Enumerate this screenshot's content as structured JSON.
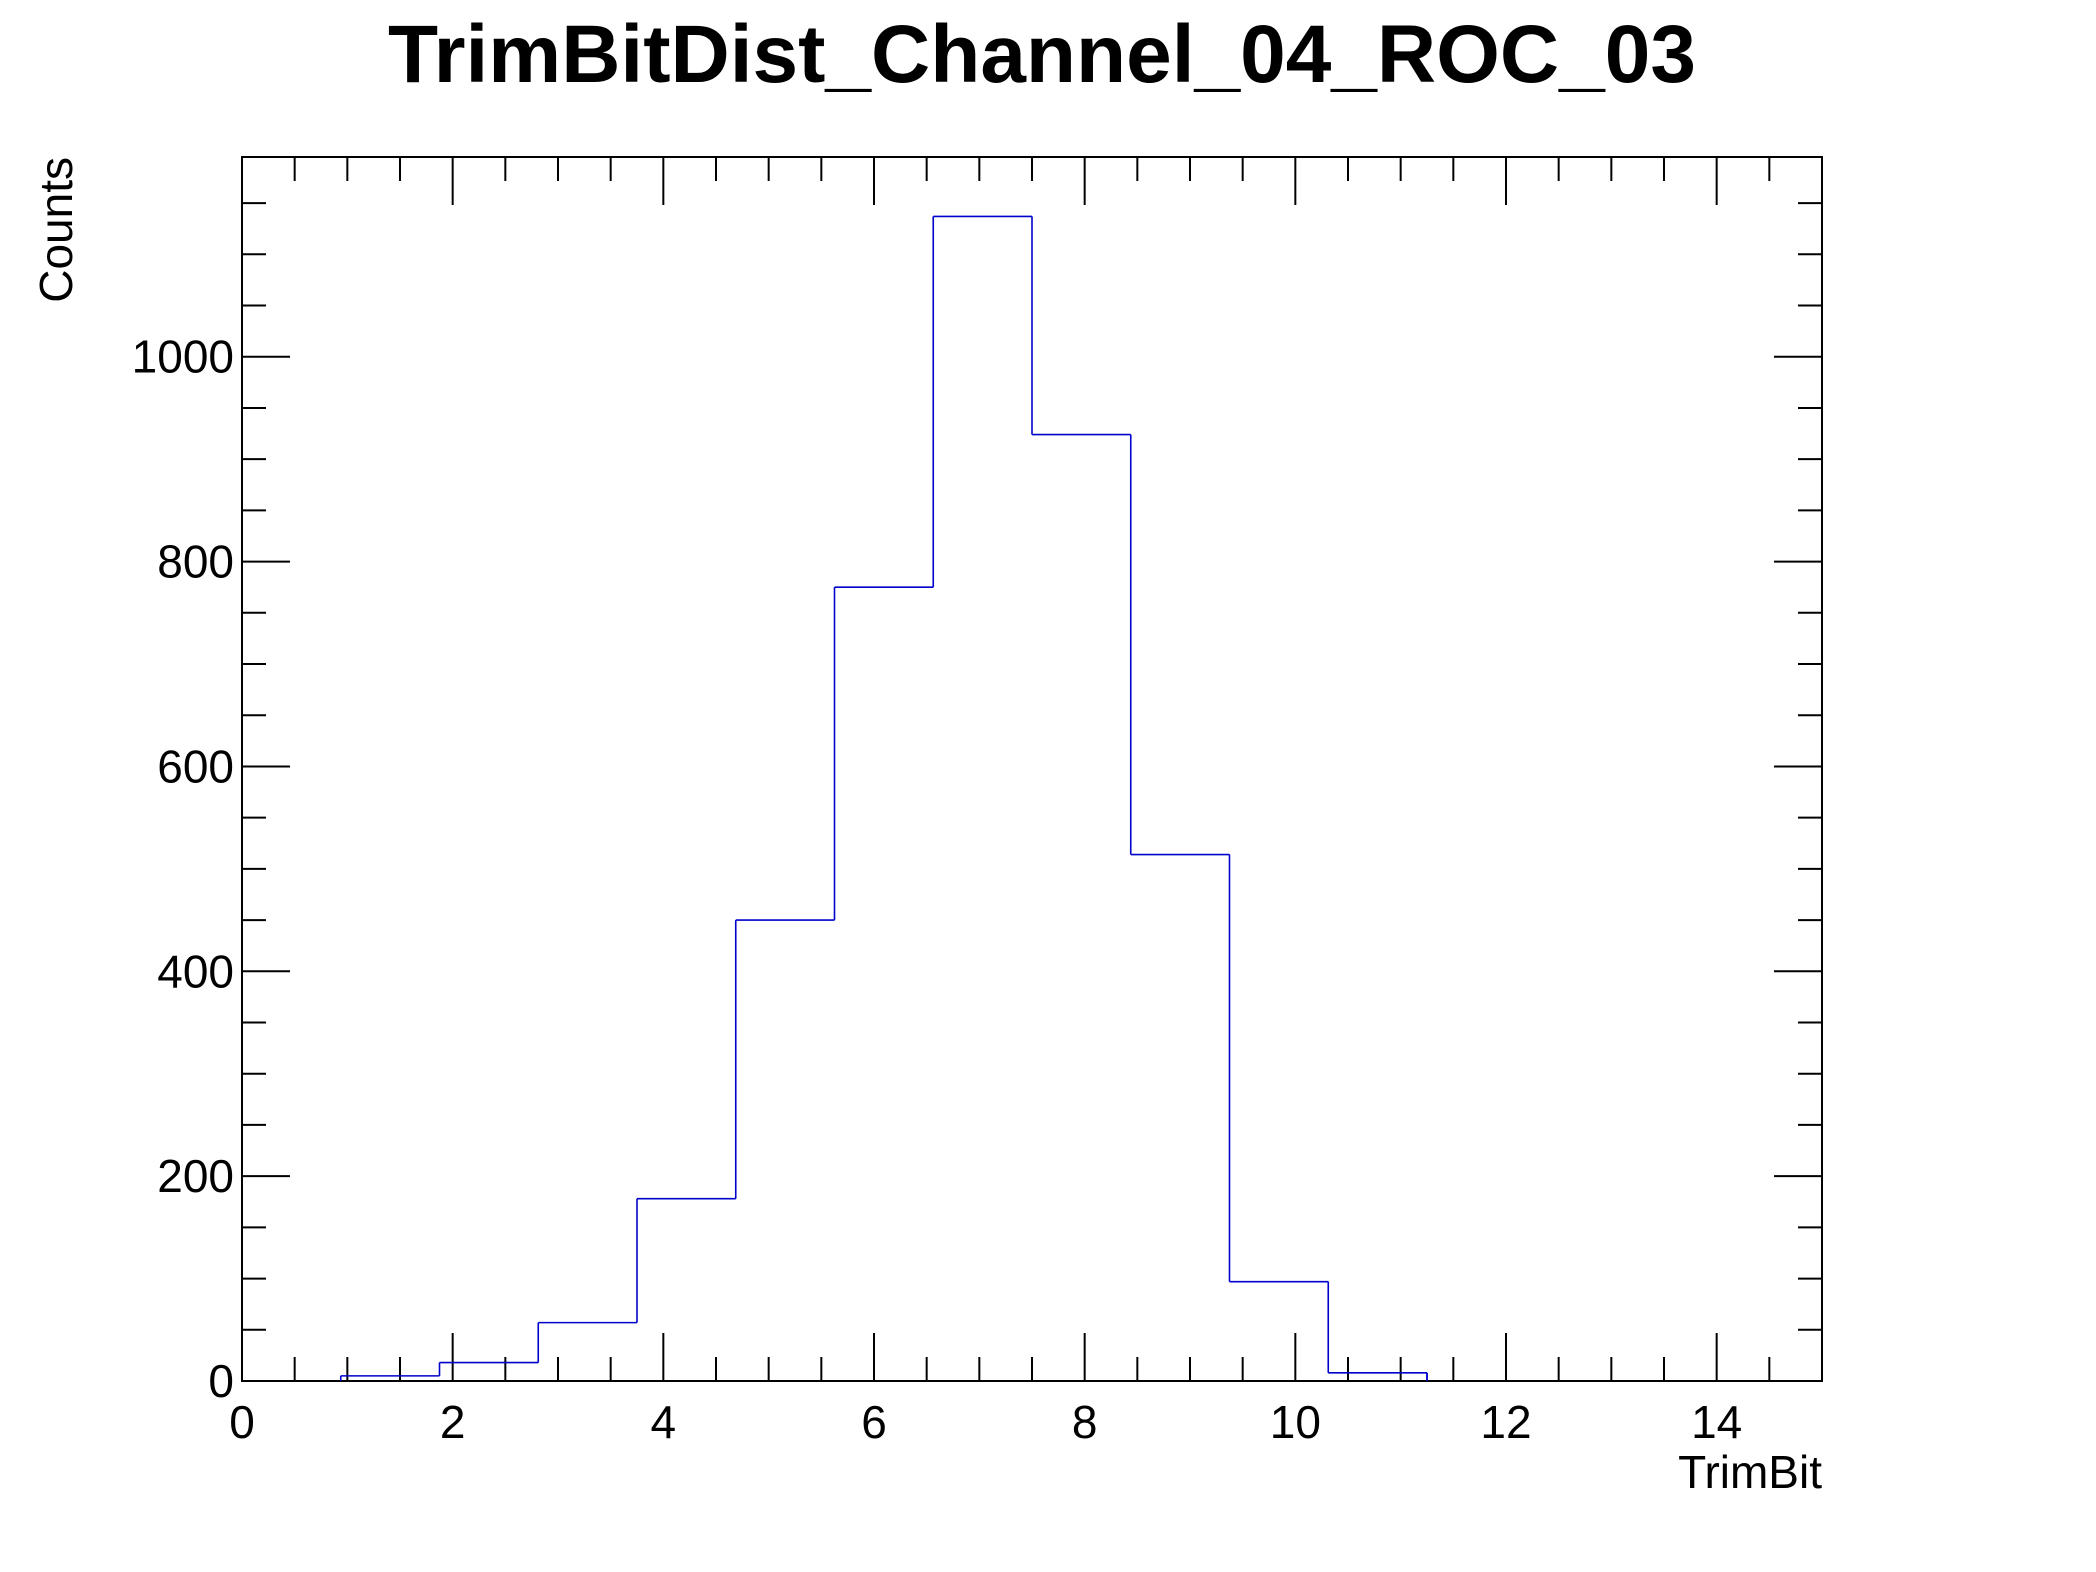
{
  "chart_data": {
    "type": "bar",
    "title": "TrimBitDist_Channel_04_ROC_03",
    "xlabel": "TrimBit",
    "ylabel": "Counts",
    "xlim": [
      0,
      15
    ],
    "ylim": [
      0,
      1195
    ],
    "bins": {
      "edges": [
        0,
        0.9375,
        1.875,
        2.8125,
        3.75,
        4.6875,
        5.625,
        6.5625,
        7.5,
        8.4375,
        9.375,
        10.3125,
        11.25,
        12.1875,
        13.125,
        14.0625,
        15
      ],
      "counts": [
        0,
        5,
        18,
        57,
        178,
        450,
        775,
        1137,
        924,
        514,
        97,
        8,
        0,
        0,
        0,
        0
      ]
    },
    "xticks": [
      "0",
      "2",
      "4",
      "6",
      "8",
      "10",
      "12",
      "14"
    ],
    "yticks": [
      "0",
      "200",
      "400",
      "600",
      "800",
      "1000"
    ],
    "line_color": "#0000cc",
    "legend": "none",
    "grid": false
  }
}
